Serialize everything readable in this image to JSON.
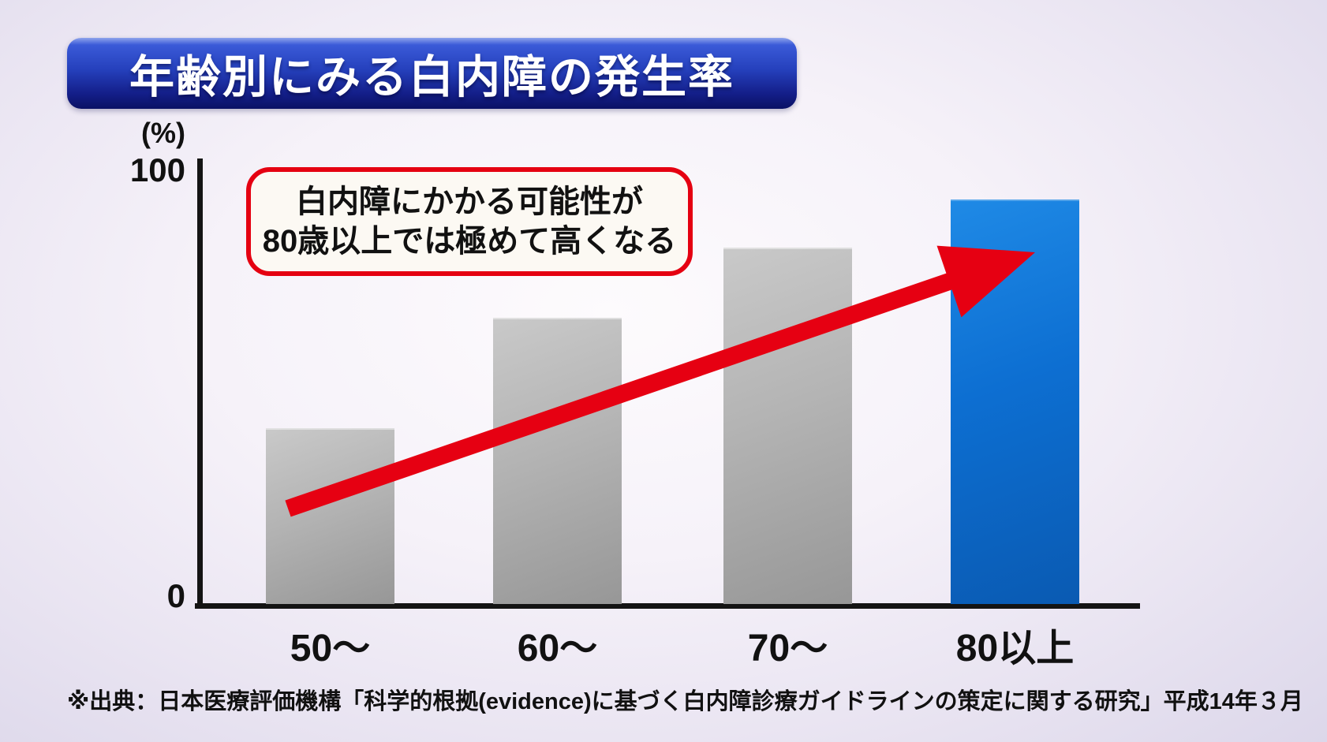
{
  "title": "年齢別にみる白内障の発生率",
  "chart_data": {
    "type": "bar",
    "title": "年齢別にみる白内障の発生率",
    "unit_label": "(%)",
    "categories": [
      "50～",
      "60～",
      "70～",
      "80以上"
    ],
    "values": [
      40,
      65,
      81,
      92
    ],
    "xlabel": "",
    "ylabel": "(%)",
    "ylim": [
      0,
      100
    ],
    "y_tick_labels": [
      "0",
      "100"
    ],
    "grid": false,
    "legend": false,
    "highlight_category": "80以上",
    "bar_colors": {
      "default": "#aaaaaa",
      "highlight": "#0d6fd2"
    }
  },
  "annotation": {
    "line1": "白内障にかかる可能性が",
    "line2": "80歳以上では極めて高くなる",
    "border_color": "#e50011"
  },
  "trend_arrow": {
    "color": "#e60012",
    "direction": "up-right"
  },
  "source": "※出典：日本医療評価機構「科学的根拠(evidence)に基づく白内障診療ガイドラインの策定に関する研究」平成14年３月"
}
